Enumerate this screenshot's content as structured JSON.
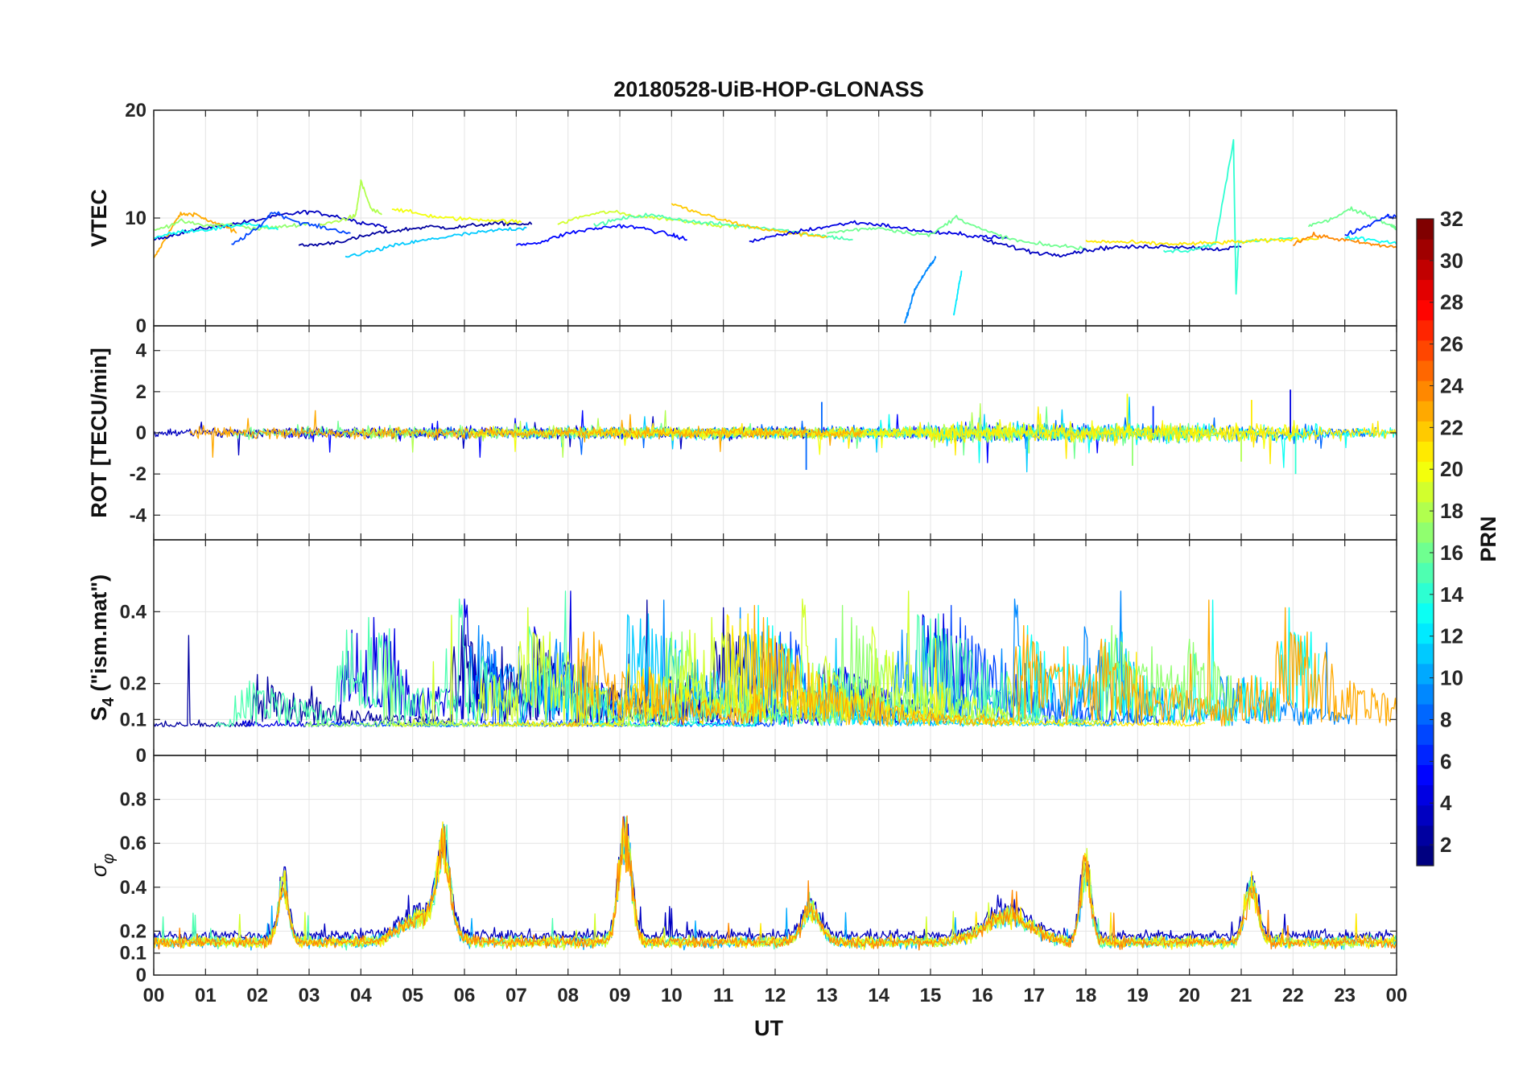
{
  "chart_data": {
    "type": "line",
    "title": "20180528-UiB-HOP-GLONASS",
    "xlabel": "UT",
    "xlim": [
      0,
      24
    ],
    "x_tick_labels": [
      "00",
      "01",
      "02",
      "03",
      "04",
      "05",
      "06",
      "07",
      "08",
      "09",
      "10",
      "11",
      "12",
      "13",
      "14",
      "15",
      "16",
      "17",
      "18",
      "19",
      "20",
      "21",
      "22",
      "23",
      "00"
    ],
    "grid": true,
    "colormap": "jet",
    "colorbar": {
      "label": "PRN",
      "range": [
        1,
        32
      ],
      "ticks": [
        "2",
        "4",
        "6",
        "8",
        "10",
        "12",
        "14",
        "16",
        "18",
        "20",
        "22",
        "24",
        "26",
        "28",
        "30",
        "32"
      ],
      "placement": "right"
    },
    "panels": [
      {
        "id": "vtec",
        "ylabel": "VTEC",
        "ylim": [
          0,
          20
        ],
        "y_ticks": [
          "0",
          "10",
          "20"
        ],
        "baseline": 8.8,
        "noise": 0.6,
        "segments": [
          {
            "prn": 23,
            "x": [
              0,
              0.25,
              0.5,
              0.8,
              1.1,
              1.4,
              1.6
            ],
            "y": [
              6.2,
              8.3,
              10.3,
              10.4,
              9.6,
              9.2,
              8.6
            ]
          },
          {
            "prn": 3,
            "x": [
              0,
              0.5,
              1.0,
              1.5,
              2.0,
              2.5,
              3.0,
              3.5,
              4.0,
              4.5
            ],
            "y": [
              8.0,
              8.6,
              9.1,
              9.4,
              9.8,
              10.3,
              10.6,
              10.2,
              9.6,
              9.2
            ]
          },
          {
            "prn": 17,
            "x": [
              0,
              0.5,
              1.0,
              1.5,
              2.0,
              2.5,
              3.0
            ],
            "y": [
              8.8,
              9.7,
              9.3,
              9.4,
              9.0,
              9.2,
              9.5
            ]
          },
          {
            "prn": 13,
            "x": [
              0,
              0.6,
              1.2,
              1.8,
              2.4
            ],
            "y": [
              8.2,
              8.8,
              9.0,
              9.5,
              8.9
            ]
          },
          {
            "prn": 7,
            "x": [
              1.5,
              2.0,
              2.3,
              2.8,
              3.3,
              3.8
            ],
            "y": [
              7.5,
              9.0,
              10.6,
              9.6,
              9.1,
              8.6
            ]
          },
          {
            "prn": 2,
            "x": [
              2.8,
              3.3,
              3.8,
              4.3,
              4.8,
              5.3,
              5.8,
              6.3,
              6.8,
              7.3
            ],
            "y": [
              7.4,
              7.6,
              8.0,
              8.6,
              8.9,
              9.2,
              9.1,
              9.4,
              9.5,
              9.4
            ]
          },
          {
            "prn": 18,
            "x": [
              3.2,
              3.6,
              3.9,
              4.0,
              4.2,
              4.4
            ],
            "y": [
              9.3,
              9.8,
              10.2,
              13.4,
              10.8,
              10.3
            ]
          },
          {
            "prn": 11,
            "x": [
              3.7,
              4.2,
              4.7,
              5.2,
              5.7,
              6.2,
              6.7,
              7.2
            ],
            "y": [
              6.4,
              6.9,
              7.5,
              7.9,
              8.3,
              8.6,
              8.9,
              9.1
            ]
          },
          {
            "prn": 20,
            "x": [
              4.6,
              5.1,
              5.6,
              6.1,
              6.6,
              7.1
            ],
            "y": [
              10.9,
              10.4,
              10.0,
              9.9,
              9.8,
              9.6
            ]
          },
          {
            "prn": 5,
            "x": [
              7.0,
              7.5,
              8.0,
              8.5,
              9.0,
              9.5,
              10.0,
              10.3
            ],
            "y": [
              7.5,
              7.8,
              8.6,
              9.0,
              9.3,
              9.0,
              8.4,
              8.0
            ]
          },
          {
            "prn": 19,
            "x": [
              7.8,
              8.3,
              8.8,
              9.3,
              9.8,
              10.3,
              10.8,
              11.3
            ],
            "y": [
              9.4,
              10.2,
              10.6,
              10.2,
              10.0,
              9.7,
              9.4,
              9.2
            ]
          },
          {
            "prn": 15,
            "x": [
              8.5,
              9.0,
              9.5,
              10.0,
              10.5,
              11.0,
              11.5,
              12.0,
              12.5,
              13.0,
              13.5
            ],
            "y": [
              9.3,
              9.9,
              10.3,
              10.0,
              9.6,
              9.4,
              9.2,
              9.0,
              8.6,
              8.3,
              8.0
            ]
          },
          {
            "prn": 22,
            "x": [
              10.0,
              10.5,
              11.0,
              11.5,
              12.0,
              12.5,
              13.0
            ],
            "y": [
              11.3,
              10.5,
              9.8,
              9.2,
              8.8,
              8.5,
              8.3
            ]
          },
          {
            "prn": 4,
            "x": [
              11.5,
              12.0,
              12.5,
              13.0,
              13.5,
              14.0,
              14.5,
              15.0,
              15.5,
              16.0,
              16.5
            ],
            "y": [
              7.8,
              8.3,
              8.8,
              9.2,
              9.6,
              9.4,
              9.0,
              8.7,
              8.5,
              8.3,
              8.1
            ]
          },
          {
            "prn": 16,
            "x": [
              13.0,
              13.5,
              14.0,
              14.5,
              15.0,
              15.5,
              16.0,
              16.5,
              17.0,
              17.5,
              18.0
            ],
            "y": [
              8.6,
              8.9,
              9.1,
              8.7,
              8.4,
              10.1,
              8.9,
              8.1,
              7.6,
              7.4,
              7.2
            ]
          },
          {
            "prn": 9,
            "x": [
              14.5,
              14.6,
              14.7,
              14.85,
              15.0,
              15.1
            ],
            "y": [
              0.2,
              1.8,
              3.4,
              4.6,
              5.6,
              6.3
            ]
          },
          {
            "prn": 12,
            "x": [
              15.45,
              15.5,
              15.55,
              15.6
            ],
            "y": [
              1.0,
              2.4,
              3.8,
              5.0
            ]
          },
          {
            "prn": 3,
            "x": [
              16.0,
              16.5,
              17.0,
              17.5,
              18.0,
              18.5,
              19.0,
              19.5,
              20.0,
              20.5,
              21.0
            ],
            "y": [
              8.0,
              7.4,
              6.8,
              6.6,
              7.0,
              7.3,
              7.3,
              7.4,
              7.3,
              7.1,
              7.3
            ]
          },
          {
            "prn": 14,
            "x": [
              19.5,
              20.0,
              20.5,
              20.85,
              20.9,
              20.95,
              21.5,
              22.0
            ],
            "y": [
              6.9,
              7.0,
              7.6,
              17.2,
              3.0,
              7.8,
              7.9,
              8.2
            ]
          },
          {
            "prn": 21,
            "x": [
              18.0,
              18.5,
              19.0,
              19.5,
              20.0,
              20.5,
              21.0,
              21.5,
              22.0,
              22.5
            ],
            "y": [
              7.8,
              7.8,
              7.7,
              7.6,
              7.6,
              7.7,
              7.8,
              7.9,
              8.0,
              8.1
            ]
          },
          {
            "prn": 24,
            "x": [
              22.0,
              22.4,
              22.8,
              23.2,
              23.6,
              24.0
            ],
            "y": [
              7.6,
              8.4,
              8.1,
              7.8,
              7.5,
              7.3
            ]
          },
          {
            "prn": 16,
            "x": [
              22.3,
              22.7,
              23.1,
              23.5,
              23.9,
              24.0
            ],
            "y": [
              9.3,
              9.8,
              10.8,
              10.2,
              9.3,
              9.0
            ]
          },
          {
            "prn": 6,
            "x": [
              23.0,
              23.4,
              23.8,
              24.0
            ],
            "y": [
              8.4,
              9.2,
              10.2,
              10.1
            ]
          },
          {
            "prn": 13,
            "x": [
              23.0,
              23.5,
              24.0
            ],
            "y": [
              8.2,
              8.0,
              7.6
            ]
          }
        ]
      },
      {
        "id": "rot",
        "ylabel": "ROT [TECU/min]",
        "ylim": [
          -5.2,
          5.2
        ],
        "y_ticks": [
          "-4",
          "-2",
          "0",
          "2",
          "4"
        ],
        "y_tick_values": [
          -4,
          -2,
          0,
          2,
          4
        ],
        "baseline": 0,
        "noise": 0.25,
        "events": [
          {
            "prn": 8,
            "x": 12.6,
            "y": -1.8
          },
          {
            "prn": 8,
            "x": 12.9,
            "y": 1.5
          },
          {
            "prn": 20,
            "x": 18.8,
            "y": 1.9
          },
          {
            "prn": 17,
            "x": 18.9,
            "y": -1.6
          },
          {
            "prn": 21,
            "x": 21.2,
            "y": 1.6
          },
          {
            "prn": 18,
            "x": 21.0,
            "y": -1.4
          },
          {
            "prn": 4,
            "x": 21.95,
            "y": 2.1
          },
          {
            "prn": 14,
            "x": 22.05,
            "y": -2.0
          },
          {
            "prn": 6,
            "x": 19.3,
            "y": 1.3
          },
          {
            "prn": 17,
            "x": 16.9,
            "y": -1.0
          }
        ]
      },
      {
        "id": "s4",
        "ylabel": "S4 (\"ism.mat\")",
        "ylabel_main": "S",
        "ylabel_sub": "4",
        "ylabel_rest": " (\"ism.mat\")",
        "ylim": [
          0,
          0.6
        ],
        "y_ticks": [
          "0",
          "0.1",
          "0.2",
          "0.4"
        ],
        "y_tick_values": [
          0,
          0.1,
          0.2,
          0.4
        ],
        "baseline": 0.08
      },
      {
        "id": "sigma",
        "ylabel": "σφ",
        "ylabel_main": "σ",
        "ylabel_sub": "φ",
        "ylim": [
          0,
          1
        ],
        "y_ticks": [
          "0",
          "0.1",
          "0.2",
          "0.4",
          "0.6",
          "0.8"
        ],
        "y_tick_values": [
          0,
          0.1,
          0.2,
          0.4,
          0.6,
          0.8
        ],
        "baseline": 0.15,
        "bursts": [
          {
            "x": 9.1,
            "peak": 0.76,
            "width": 0.25
          },
          {
            "x": 18.0,
            "peak": 0.58,
            "width": 0.2
          },
          {
            "x": 21.2,
            "peak": 0.46,
            "width": 0.25
          },
          {
            "x": 5.6,
            "peak": 0.62,
            "width": 0.25
          },
          {
            "x": 2.5,
            "peak": 0.48,
            "width": 0.2
          },
          {
            "x": 12.7,
            "peak": 0.33,
            "width": 0.35
          },
          {
            "x": 16.5,
            "peak": 0.3,
            "width": 0.9
          },
          {
            "x": 5.2,
            "peak": 0.3,
            "width": 0.8
          }
        ]
      }
    ]
  }
}
